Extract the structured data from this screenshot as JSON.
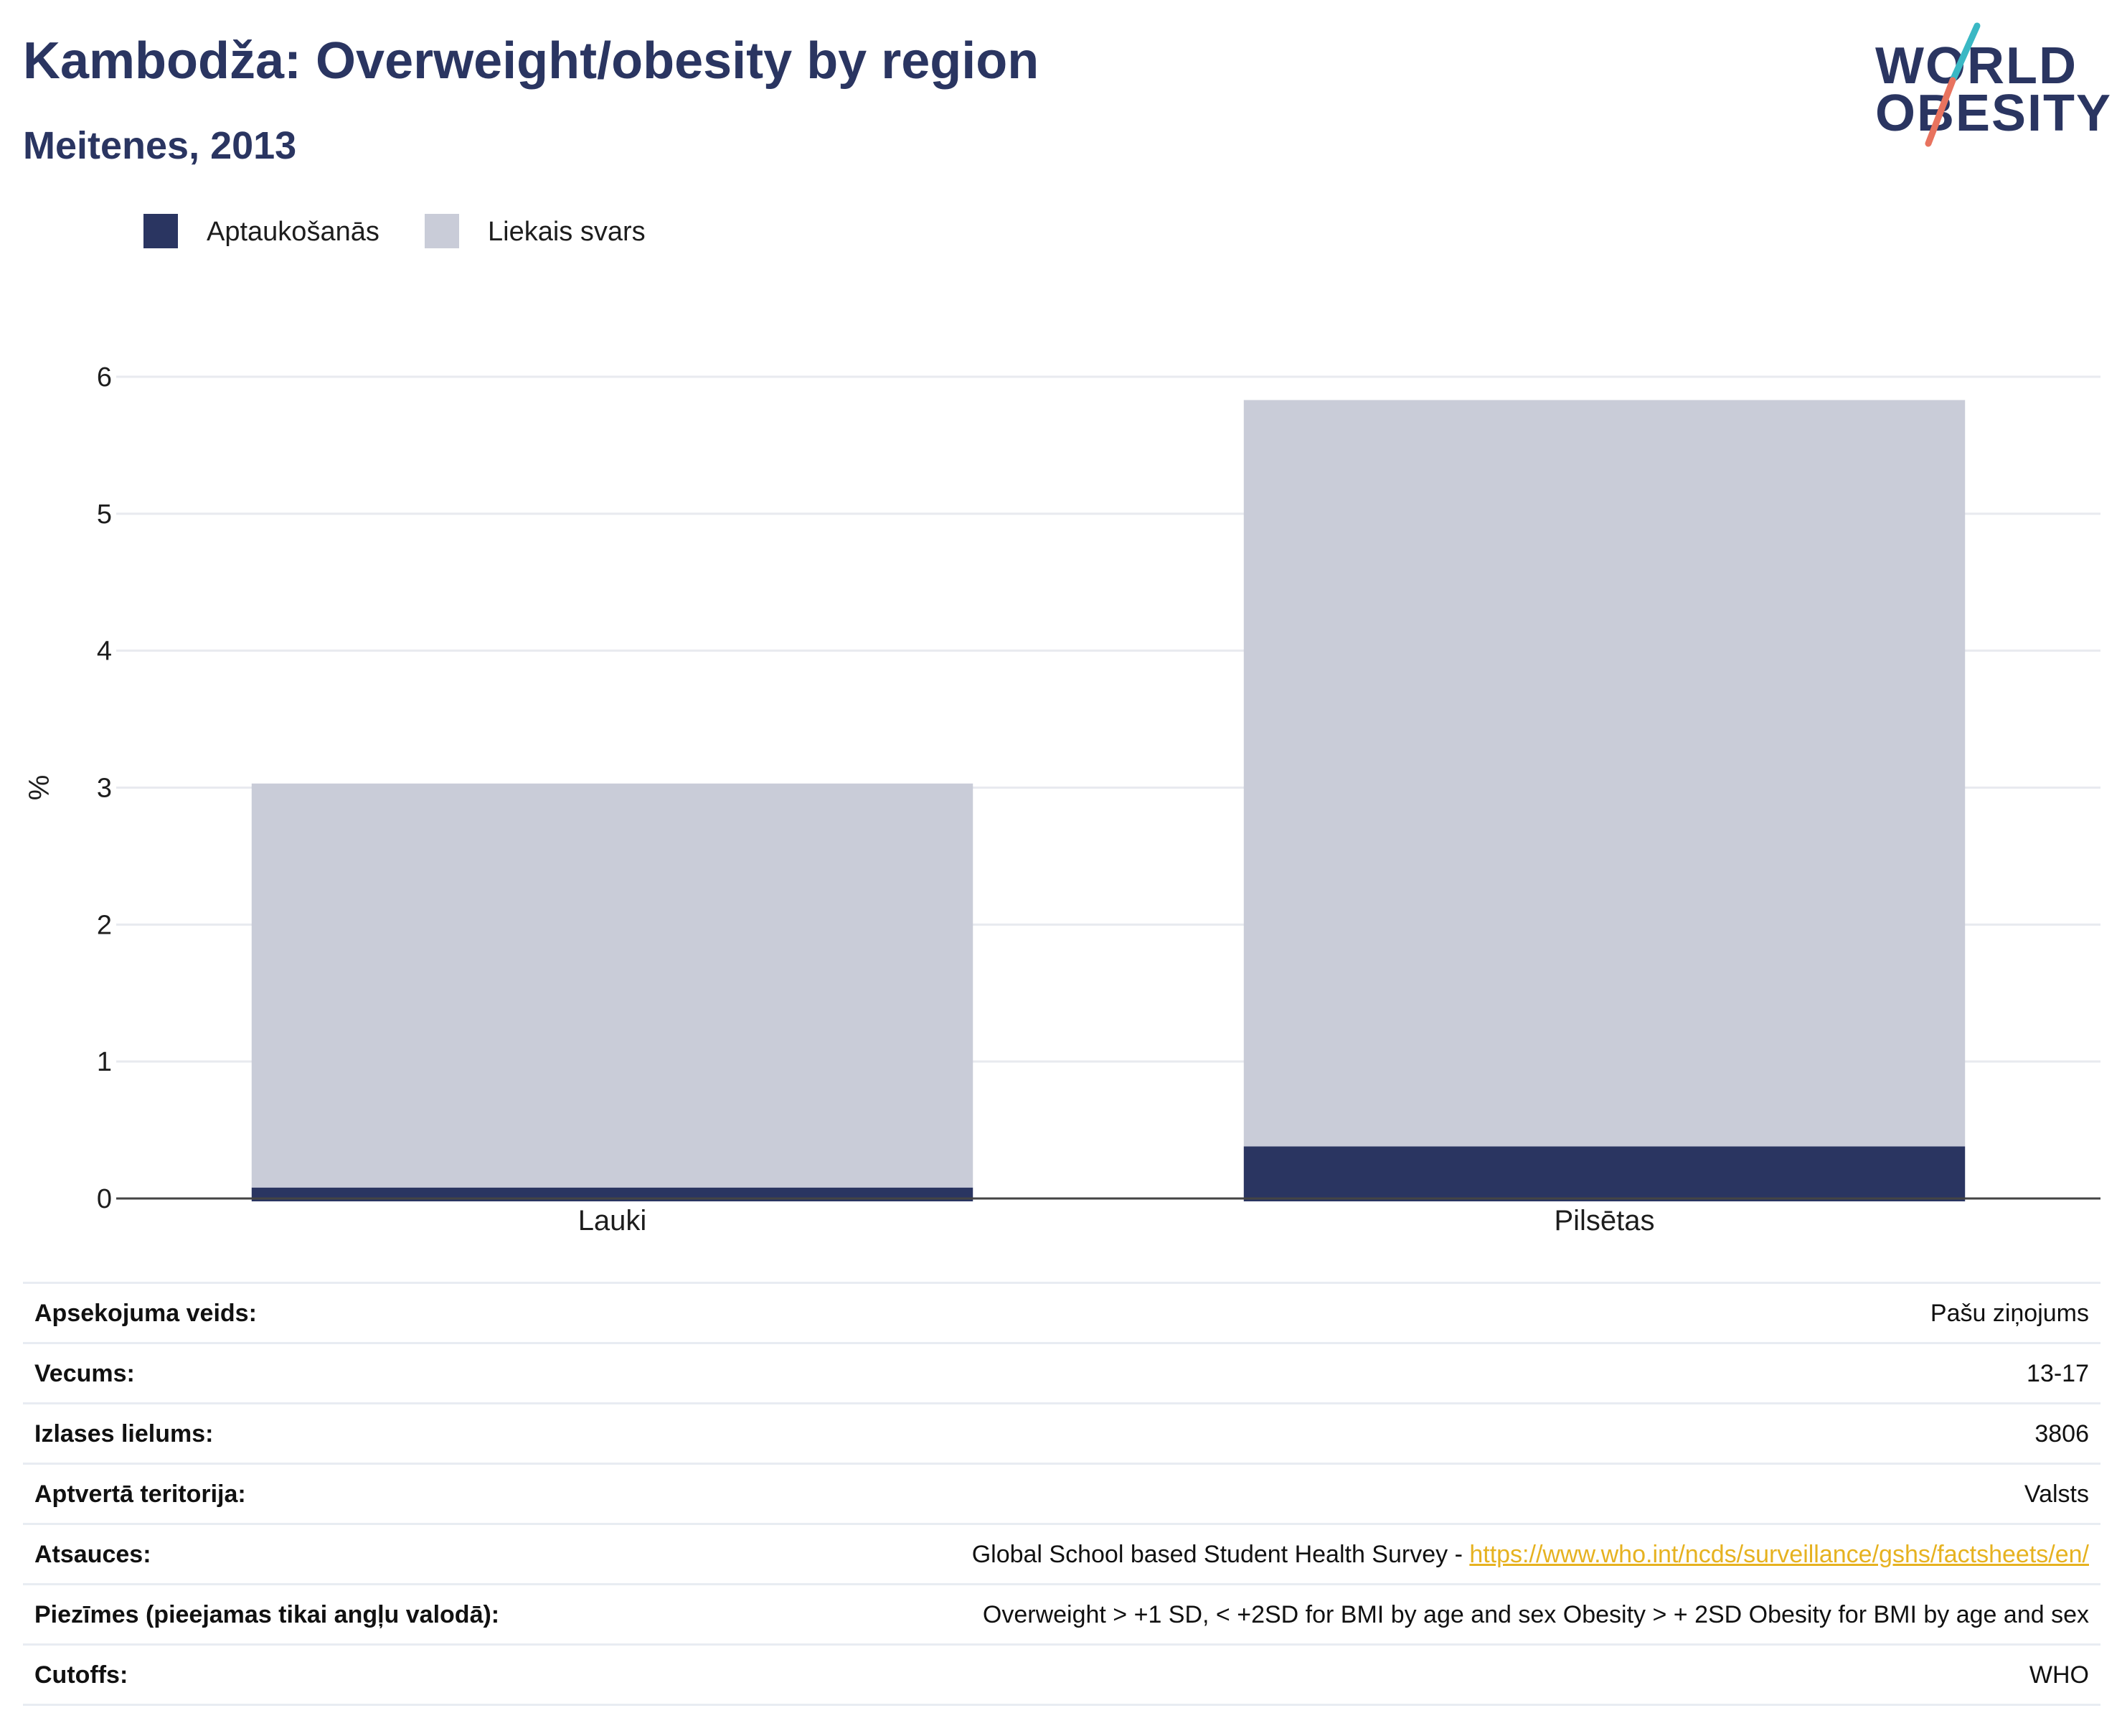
{
  "header": {
    "title": "Kambodža: Overweight/obesity by region",
    "subtitle": "Meitenes, 2013"
  },
  "logo": {
    "line1": "WORLD",
    "line2": "OBESITY",
    "accent_colors": [
      "#3ab8c4",
      "#e8735f"
    ]
  },
  "legend": {
    "items": [
      {
        "label": "Aptaukošanās",
        "color": "#2a3561"
      },
      {
        "label": "Liekais svars",
        "color": "#c9ccd8"
      }
    ]
  },
  "chart_data": {
    "type": "bar",
    "stacked": true,
    "categories": [
      "Lauki",
      "Pilsētas"
    ],
    "series": [
      {
        "name": "Aptaukošanās",
        "color": "#2a3561",
        "values": [
          0.08,
          0.38
        ]
      },
      {
        "name": "Liekais svars",
        "color": "#c9ccd8",
        "values": [
          2.95,
          5.45
        ]
      }
    ],
    "title": "Kambodža: Overweight/obesity by region",
    "subtitle": "Meitenes, 2013",
    "xlabel": "",
    "ylabel": "%",
    "ylim": [
      0,
      6
    ],
    "yticks": [
      0,
      1,
      2,
      3,
      4,
      5,
      6
    ],
    "grid": true,
    "legend_position": "top-left"
  },
  "info": {
    "rows": [
      {
        "key": "Apsekojuma veids:",
        "value": "Pašu ziņojums"
      },
      {
        "key": "Vecums:",
        "value": "13-17"
      },
      {
        "key": "Izlases lielums:",
        "value": "3806"
      },
      {
        "key": "Aptvertā teritorija:",
        "value": "Valsts"
      },
      {
        "key": "Atsauces:",
        "value": "Global School based Student Health Survey - ",
        "link": "https://www.who.int/ncds/surveillance/gshs/factsheets/en/"
      },
      {
        "key": "Piezīmes (pieejamas tikai angļu valodā):",
        "value": "Overweight > +1 SD, < +2SD for BMI by age and sex Obesity > + 2SD Obesity for BMI by age and sex"
      },
      {
        "key": "Cutoffs:",
        "value": "WHO"
      }
    ]
  }
}
